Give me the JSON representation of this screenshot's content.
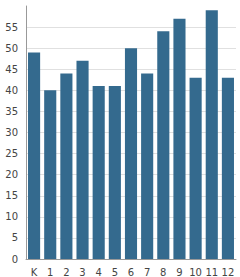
{
  "chart_data": {
    "type": "bar",
    "categories": [
      "K",
      "1",
      "2",
      "3",
      "4",
      "5",
      "6",
      "7",
      "8",
      "9",
      "10",
      "11",
      "12"
    ],
    "values": [
      49,
      40,
      44,
      47,
      41,
      41,
      50,
      44,
      54,
      57,
      43,
      59,
      43
    ],
    "color": "#346a8e",
    "ylim": [
      0,
      60
    ],
    "yticks": [
      0,
      5,
      10,
      15,
      20,
      25,
      30,
      35,
      40,
      45,
      50,
      55
    ],
    "grid": true
  }
}
